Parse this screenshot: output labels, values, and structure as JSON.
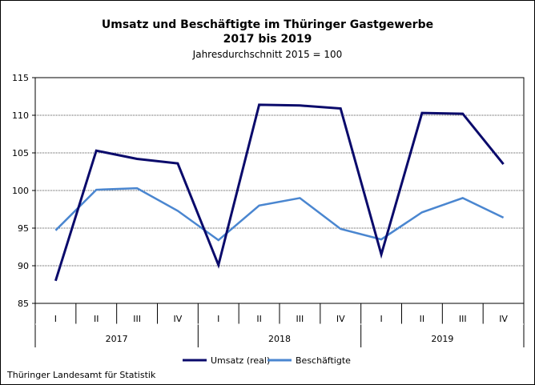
{
  "chart_data": {
    "type": "line",
    "title": "Umsatz und Beschäftigte im Thüringer Gastgewerbe",
    "title_line2": "2017 bis 2019",
    "subtitle": "Jahresdurchschnitt 2015 = 100",
    "categories": [
      "I",
      "II",
      "III",
      "IV",
      "I",
      "II",
      "III",
      "IV",
      "I",
      "II",
      "III",
      "IV"
    ],
    "groups": [
      "2017",
      "2018",
      "2019"
    ],
    "ylim": [
      85,
      115
    ],
    "yticks": [
      "85",
      "90",
      "95",
      "100",
      "105",
      "110",
      "115"
    ],
    "grid": true,
    "legend_position": "bottom",
    "series": [
      {
        "name": "Umsatz (real)",
        "color": "#0a0a6b",
        "values": [
          88.0,
          105.3,
          104.2,
          103.6,
          90.1,
          111.4,
          111.3,
          110.9,
          91.5,
          110.3,
          110.2,
          103.5
        ]
      },
      {
        "name": "Beschäftigte",
        "color": "#4a86d0",
        "values": [
          94.7,
          100.1,
          100.3,
          97.3,
          93.4,
          98.0,
          99.0,
          94.9,
          93.5,
          97.1,
          99.0,
          96.4
        ]
      }
    ]
  },
  "footer": "Thüringer Landesamt für  Statistik"
}
